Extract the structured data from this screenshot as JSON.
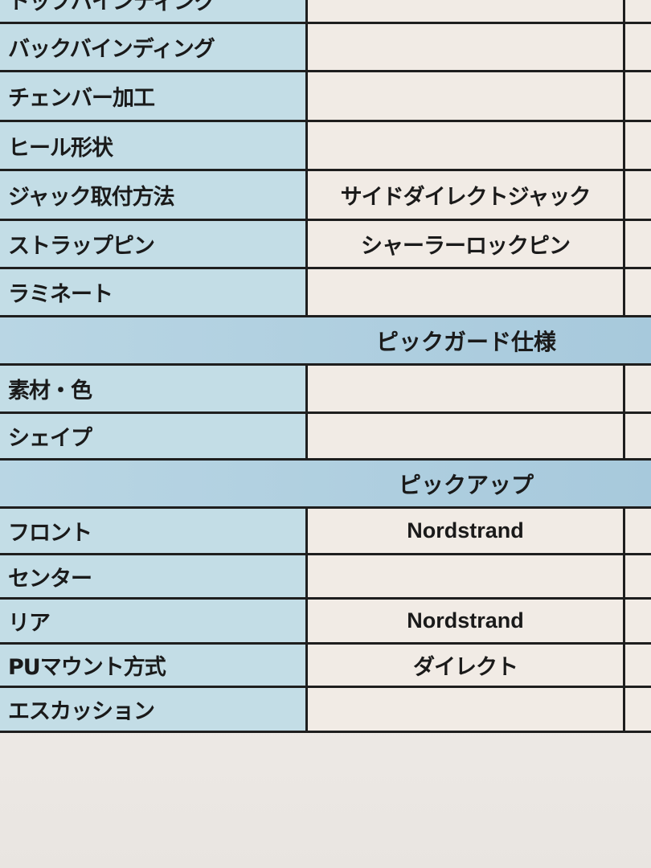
{
  "rows_a": [
    {
      "label": "トップバインディング",
      "value": ""
    },
    {
      "label": "バックバインディング",
      "value": ""
    },
    {
      "label": "チェンバー加工",
      "value": ""
    },
    {
      "label": "ヒール形状",
      "value": ""
    },
    {
      "label": "ジャック取付方法",
      "value": "サイドダイレクトジャック"
    },
    {
      "label": "ストラップピン",
      "value": "シャーラーロックピン"
    },
    {
      "label": "ラミネート",
      "value": ""
    }
  ],
  "section_pickguard": "ピックガード仕様",
  "rows_b": [
    {
      "label": "素材・色",
      "value": ""
    },
    {
      "label": "シェイプ",
      "value": ""
    }
  ],
  "section_pickup": "ピックアップ",
  "rows_c": [
    {
      "label": "フロント",
      "value": "Nordstrand"
    },
    {
      "label": "センター",
      "value": ""
    },
    {
      "label": "リア",
      "value": "Nordstrand"
    },
    {
      "label": "PUマウント方式",
      "value": "ダイレクト"
    },
    {
      "label": "エスカッション",
      "value": ""
    }
  ]
}
